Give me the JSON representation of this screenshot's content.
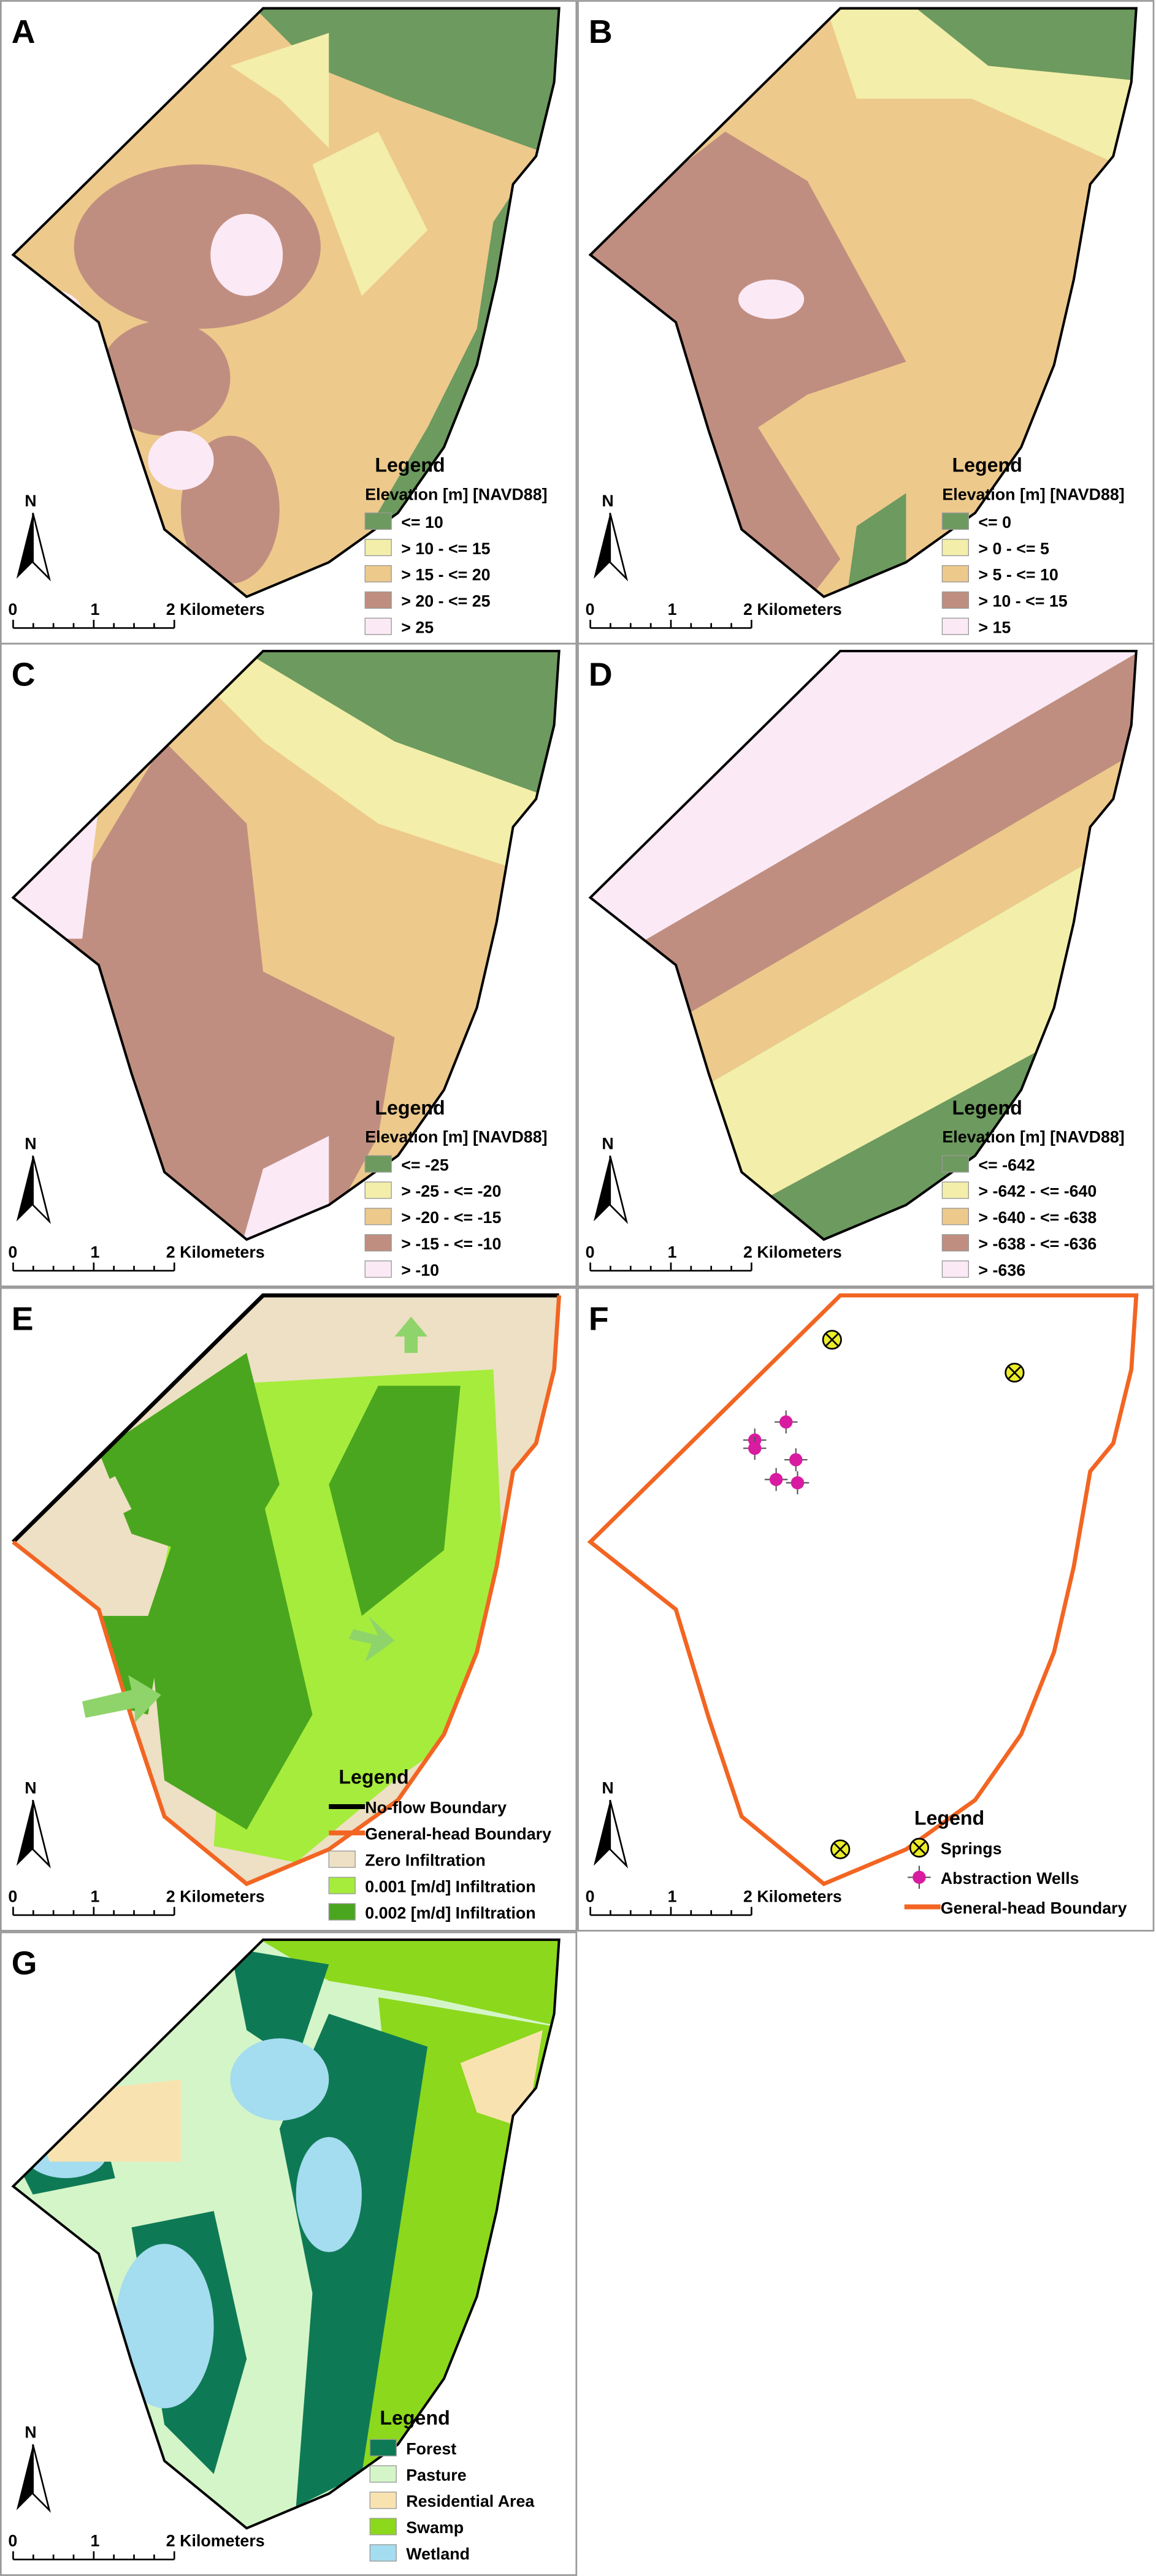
{
  "panels": [
    {
      "label": "A",
      "legend_heading": "Legend",
      "legend_title": "Elevation [m] [NAVD88]",
      "north": "N",
      "scale": [
        "0",
        "1",
        "2 Kilometers"
      ],
      "legend_items": [
        {
          "label": "<= 10",
          "color": "#6d9a5e"
        },
        {
          "label": "> 10 - <= 15",
          "color": "#f3eeaa"
        },
        {
          "label": "> 15 - <= 20",
          "color": "#edc98c"
        },
        {
          "label": "> 20 - <= 25",
          "color": "#c08e80"
        },
        {
          "label": "> 25",
          "color": "#fbe9f5"
        }
      ]
    },
    {
      "label": "B",
      "legend_heading": "Legend",
      "legend_title": "Elevation [m] [NAVD88]",
      "north": "N",
      "scale": [
        "0",
        "1",
        "2 Kilometers"
      ],
      "legend_items": [
        {
          "label": "<= 0",
          "color": "#6d9a5e"
        },
        {
          "label": "> 0 - <= 5",
          "color": "#f3eeaa"
        },
        {
          "label": "> 5 - <= 10",
          "color": "#edc98c"
        },
        {
          "label": "> 10 - <= 15",
          "color": "#c08e80"
        },
        {
          "label": "> 15",
          "color": "#fbe9f5"
        }
      ]
    },
    {
      "label": "C",
      "legend_heading": "Legend",
      "legend_title": "Elevation [m] [NAVD88]",
      "north": "N",
      "scale": [
        "0",
        "1",
        "2 Kilometers"
      ],
      "legend_items": [
        {
          "label": "<= -25",
          "color": "#6d9a5e"
        },
        {
          "label": "> -25 - <= -20",
          "color": "#f3eeaa"
        },
        {
          "label": "> -20 - <= -15",
          "color": "#edc98c"
        },
        {
          "label": "> -15 - <= -10",
          "color": "#c08e80"
        },
        {
          "label": "> -10",
          "color": "#fbe9f5"
        }
      ]
    },
    {
      "label": "D",
      "legend_heading": "Legend",
      "legend_title": "Elevation [m] [NAVD88]",
      "north": "N",
      "scale": [
        "0",
        "1",
        "2 Kilometers"
      ],
      "legend_items": [
        {
          "label": "<= -642",
          "color": "#6d9a5e"
        },
        {
          "label": "> -642 - <= -640",
          "color": "#f3eeaa"
        },
        {
          "label": "> -640 - <= -638",
          "color": "#edc98c"
        },
        {
          "label": "> -638 - <= -636",
          "color": "#c08e80"
        },
        {
          "label": "> -636",
          "color": "#fbe9f5"
        }
      ]
    },
    {
      "label": "E",
      "legend_heading": "Legend",
      "north": "N",
      "scale": [
        "0",
        "1",
        "2 Kilometers"
      ],
      "legend_items": [
        {
          "label": "No-flow Boundary",
          "color": "#000000",
          "symbol": "line"
        },
        {
          "label": "General-head Boundary",
          "color": "#f26522",
          "symbol": "line"
        },
        {
          "label": "Zero Infiltration",
          "color": "#ede0c4"
        },
        {
          "label": "0.001 [m/d] Infiltration",
          "color": "#a6ec3c"
        },
        {
          "label": "0.002 [m/d] Infiltration",
          "color": "#4aa61e"
        }
      ]
    },
    {
      "label": "F",
      "legend_heading": "Legend",
      "north": "N",
      "scale": [
        "0",
        "1",
        "2 Kilometers"
      ],
      "legend_items": [
        {
          "label": "Springs",
          "color": "#ecec2a",
          "symbol": "spring"
        },
        {
          "label": "Abstraction Wells",
          "color": "#d81ba0",
          "symbol": "well"
        },
        {
          "label": "General-head Boundary",
          "color": "#f26522",
          "symbol": "line"
        }
      ]
    },
    {
      "label": "G",
      "legend_heading": "Legend",
      "north": "N",
      "scale": [
        "0",
        "1",
        "2 Kilometers"
      ],
      "legend_items": [
        {
          "label": "Forest",
          "color": "#0e7a55"
        },
        {
          "label": "Pasture",
          "color": "#d4f5c8"
        },
        {
          "label": "Residential Area",
          "color": "#f8e3b0"
        },
        {
          "label": "Swamp",
          "color": "#8cd81c"
        },
        {
          "label": "Wetland",
          "color": "#a4dcf0"
        }
      ]
    }
  ]
}
